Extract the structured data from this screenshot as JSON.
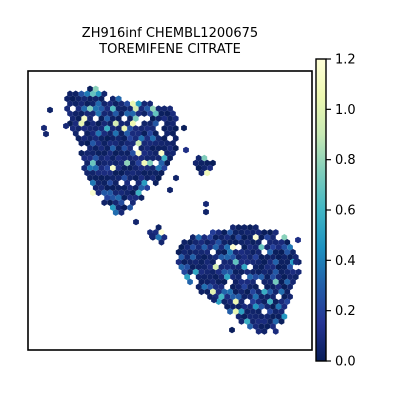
{
  "chart_data": {
    "type": "heatmap",
    "subtype": "hexbin-embedding",
    "title_lines": [
      "ZH916inf CHEMBL1200675",
      "TOREMIFENE CITRATE"
    ],
    "xlabel": "",
    "ylabel": "",
    "axes_ticks": "none",
    "colorbar": {
      "colormap": "YlGnBu_r",
      "range": [
        0.0,
        1.2
      ],
      "ticks": [
        0.0,
        0.2,
        0.4,
        0.6,
        0.8,
        1.0,
        1.2
      ],
      "tick_labels": [
        "0.0",
        "0.2",
        "0.4",
        "0.6",
        "0.8",
        "1.0",
        "1.2"
      ]
    },
    "colors": {
      "low": "#081d58",
      "mid_low": "#253494",
      "mid": "#1d91c0",
      "mid_high": "#7fcdbb",
      "high": "#ffffd9"
    },
    "clusters": [
      {
        "name": "upper-left",
        "typical_value": 0.05,
        "max_value": 1.2
      },
      {
        "name": "lower-right",
        "typical_value": 0.08,
        "max_value": 1.2
      },
      {
        "name": "small-middle",
        "typical_value": 0.05,
        "max_value": 0.6
      }
    ]
  }
}
